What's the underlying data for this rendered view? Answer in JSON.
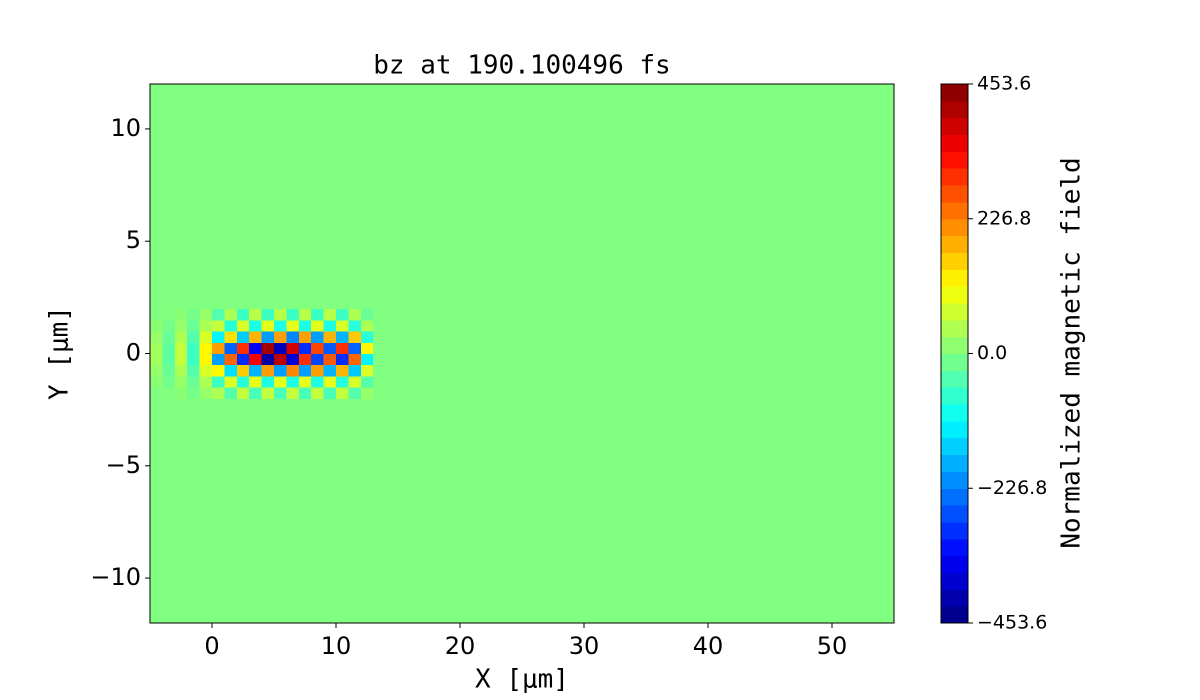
{
  "chart_data": {
    "type": "heatmap",
    "title": "bz at 190.100496 fs",
    "xlabel": "X [μm]",
    "ylabel": "Y [μm]",
    "colorbar_label": "Normalized magnetic field",
    "colormap": "jet",
    "xlim": [
      -5,
      55
    ],
    "ylim": [
      -12,
      12
    ],
    "xticks": [
      0,
      10,
      20,
      30,
      40,
      50
    ],
    "yticks": [
      {
        "value": -10,
        "label": "−10"
      },
      {
        "value": -5,
        "label": "−5"
      },
      0,
      5,
      10
    ],
    "clim": [
      -453.6,
      453.6
    ],
    "cticks": [
      {
        "value": -453.6,
        "label": "−453.6"
      },
      {
        "value": -226.8,
        "label": "−226.8"
      },
      {
        "value": 0,
        "label": "0.0"
      },
      226.8,
      453.6
    ],
    "x": [
      -5,
      -4,
      -3,
      -2,
      -1,
      0,
      1,
      2,
      3,
      4,
      5,
      6,
      7,
      8,
      9,
      10,
      11,
      12,
      13,
      55
    ],
    "y": [
      -12,
      -2,
      -1.5,
      -1,
      -0.5,
      0,
      0.5,
      1,
      1.5,
      2,
      12
    ],
    "z": [
      [
        0,
        0,
        0,
        0,
        0,
        0,
        0,
        0,
        0,
        0,
        0,
        0,
        0,
        0,
        0,
        0,
        0,
        0,
        0
      ],
      [
        0,
        0,
        10,
        -10,
        20,
        40,
        -40,
        60,
        -50,
        60,
        -50,
        60,
        -50,
        60,
        -50,
        60,
        -40,
        20,
        0
      ],
      [
        10,
        -10,
        20,
        -20,
        40,
        -60,
        80,
        -80,
        90,
        -90,
        90,
        -90,
        90,
        -90,
        90,
        -80,
        80,
        -40,
        0
      ],
      [
        20,
        -20,
        40,
        -40,
        80,
        120,
        -140,
        160,
        -180,
        200,
        -200,
        220,
        -200,
        200,
        -180,
        180,
        -160,
        80,
        0
      ],
      [
        30,
        -30,
        60,
        -60,
        120,
        -200,
        250,
        -300,
        350,
        -420,
        400,
        -380,
        300,
        -280,
        260,
        -300,
        250,
        -120,
        0
      ],
      [
        30,
        -30,
        60,
        -60,
        120,
        200,
        -250,
        300,
        -350,
        420,
        -400,
        380,
        -300,
        280,
        -260,
        300,
        -250,
        120,
        0
      ],
      [
        20,
        -20,
        40,
        -40,
        80,
        -120,
        140,
        -160,
        180,
        -200,
        200,
        -220,
        200,
        -200,
        180,
        -180,
        160,
        -80,
        0
      ],
      [
        10,
        -10,
        20,
        -20,
        40,
        60,
        -80,
        80,
        -90,
        90,
        -90,
        90,
        -90,
        90,
        -90,
        80,
        -80,
        40,
        0
      ],
      [
        0,
        0,
        10,
        -10,
        20,
        -40,
        40,
        -60,
        50,
        -60,
        50,
        -60,
        50,
        -60,
        50,
        -60,
        40,
        -20,
        0
      ],
      [
        0,
        0,
        0,
        0,
        0,
        0,
        0,
        0,
        0,
        0,
        0,
        0,
        0,
        0,
        0,
        0,
        0,
        0,
        0
      ]
    ]
  }
}
